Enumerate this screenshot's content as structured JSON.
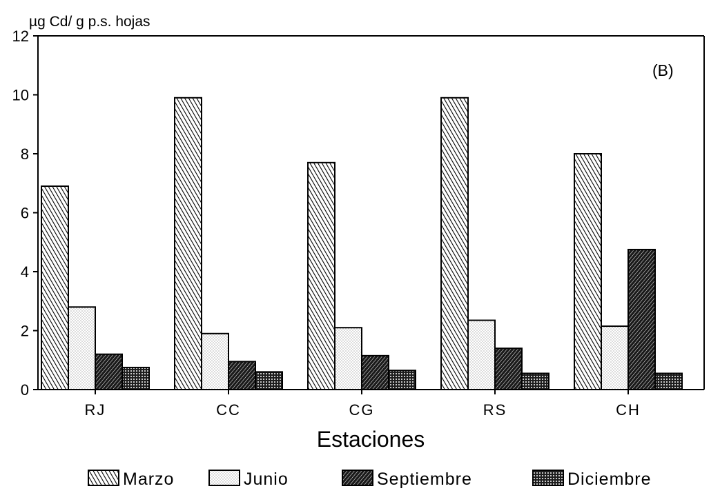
{
  "chart_data": {
    "type": "bar",
    "ylabel": "µg Cd/ g p.s. hojas",
    "xlabel": "Estaciones",
    "annotation": "(B)",
    "categories": [
      "RJ",
      "CC",
      "CG",
      "RS",
      "CH"
    ],
    "ylim": [
      0,
      12
    ],
    "yticks": [
      "0",
      "2",
      "4",
      "6",
      "8",
      "10",
      "12"
    ],
    "grid": false,
    "legend_position": "bottom",
    "series": [
      {
        "name": "Marzo",
        "pattern": "diagonal-hatch",
        "values": [
          6.9,
          9.9,
          7.7,
          9.9,
          8.0
        ]
      },
      {
        "name": "Junio",
        "pattern": "light-dots",
        "values": [
          2.8,
          1.9,
          2.1,
          2.35,
          2.15
        ]
      },
      {
        "name": "Septiembre",
        "pattern": "dense-diagonal",
        "values": [
          1.2,
          0.95,
          1.15,
          1.4,
          4.75
        ]
      },
      {
        "name": "Diciembre",
        "pattern": "crosshatch-dots",
        "values": [
          0.75,
          0.6,
          0.65,
          0.55,
          0.55
        ]
      }
    ]
  }
}
